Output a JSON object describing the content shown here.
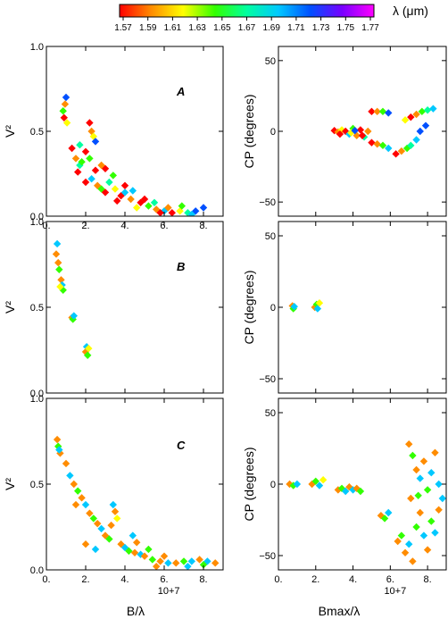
{
  "colorbar": {
    "label": "λ (μm)",
    "ticks": [
      "1.57",
      "1.59",
      "1.61",
      "1.63",
      "1.65",
      "1.67",
      "1.69",
      "1.71",
      "1.73",
      "1.75",
      "1.77"
    ],
    "stops": [
      "#ff0000",
      "#ff8c00",
      "#ffff00",
      "#32ff00",
      "#00ffa0",
      "#00c8ff",
      "#0050ff",
      "#7800ff",
      "#ff00ff"
    ]
  },
  "labels": {
    "left_x": "B/λ",
    "right_x": "Bmax/λ",
    "left_y": "V²",
    "right_y": "CP (degrees)",
    "exponent": "10+7"
  },
  "chart_data": [
    {
      "type": "scatter",
      "panel": "A",
      "quantity": "V2",
      "xlim": [
        0,
        9
      ],
      "ylim": [
        0,
        1
      ],
      "xticks": [
        "0.",
        "2.",
        "4.",
        "6.",
        "8."
      ],
      "xtick_values": [
        0,
        2,
        4,
        6,
        8
      ],
      "yticks": [
        "0.0",
        "0.5",
        "1.0"
      ],
      "ytick_values": [
        0,
        0.5,
        1
      ],
      "points": [
        [
          0.9,
          0.58,
          "#ff0000"
        ],
        [
          0.95,
          0.66,
          "#ff8c00"
        ],
        [
          1.0,
          0.7,
          "#0050ff"
        ],
        [
          0.85,
          0.62,
          "#32ff00"
        ],
        [
          1.05,
          0.55,
          "#ffff00"
        ],
        [
          1.3,
          0.4,
          "#ff0000"
        ],
        [
          1.5,
          0.34,
          "#ff8c00"
        ],
        [
          1.7,
          0.3,
          "#00ffa0"
        ],
        [
          1.6,
          0.26,
          "#ff0000"
        ],
        [
          1.8,
          0.32,
          "#32ff00"
        ],
        [
          2.2,
          0.55,
          "#ff0000"
        ],
        [
          2.3,
          0.5,
          "#ff8c00"
        ],
        [
          2.4,
          0.47,
          "#ffff00"
        ],
        [
          2.5,
          0.44,
          "#0050ff"
        ],
        [
          2.0,
          0.2,
          "#ff0000"
        ],
        [
          2.3,
          0.22,
          "#00c8ff"
        ],
        [
          2.6,
          0.18,
          "#ff8c00"
        ],
        [
          2.8,
          0.16,
          "#32ff00"
        ],
        [
          3.0,
          0.14,
          "#ff0000"
        ],
        [
          3.2,
          0.2,
          "#00ffa0"
        ],
        [
          3.5,
          0.16,
          "#ffff00"
        ],
        [
          3.8,
          0.12,
          "#ff0000"
        ],
        [
          4.0,
          0.14,
          "#00c8ff"
        ],
        [
          4.3,
          0.1,
          "#ff8c00"
        ],
        [
          3.0,
          0.28,
          "#ff0000"
        ],
        [
          3.4,
          0.24,
          "#32ff00"
        ],
        [
          4.0,
          0.18,
          "#ff0000"
        ],
        [
          4.4,
          0.15,
          "#00c8ff"
        ],
        [
          2.5,
          0.27,
          "#ff0000"
        ],
        [
          2.8,
          0.3,
          "#ff8c00"
        ],
        [
          2.2,
          0.34,
          "#32ff00"
        ],
        [
          2.0,
          0.38,
          "#ff0000"
        ],
        [
          1.7,
          0.42,
          "#00ffa0"
        ],
        [
          4.8,
          0.08,
          "#ff0000"
        ],
        [
          5.2,
          0.06,
          "#32ff00"
        ],
        [
          5.6,
          0.04,
          "#ff8c00"
        ],
        [
          6.0,
          0.03,
          "#00c8ff"
        ],
        [
          6.4,
          0.02,
          "#ff0000"
        ],
        [
          6.8,
          0.03,
          "#ffff00"
        ],
        [
          7.2,
          0.02,
          "#00ffa0"
        ],
        [
          7.6,
          0.03,
          "#0050ff"
        ],
        [
          8.0,
          0.05,
          "#0050ff"
        ],
        [
          5.0,
          0.1,
          "#ff0000"
        ],
        [
          5.5,
          0.08,
          "#00ffa0"
        ],
        [
          6.2,
          0.05,
          "#ff8c00"
        ],
        [
          6.9,
          0.06,
          "#32ff00"
        ],
        [
          3.6,
          0.09,
          "#ff0000"
        ],
        [
          4.6,
          0.05,
          "#ffff00"
        ],
        [
          5.8,
          0.02,
          "#ff0000"
        ],
        [
          7.4,
          0.01,
          "#00c8ff"
        ]
      ]
    },
    {
      "type": "scatter",
      "panel": "A",
      "quantity": "CP",
      "xlim": [
        0,
        9
      ],
      "ylim": [
        -60,
        60
      ],
      "xticks": [],
      "xtick_values": [
        0,
        2,
        4,
        6,
        8
      ],
      "yticks": [
        "−50",
        "0",
        "50"
      ],
      "ytick_values": [
        -50,
        0,
        50
      ],
      "points": [
        [
          3.0,
          0.5,
          "#ff0000"
        ],
        [
          3.2,
          -0.5,
          "#ff8c00"
        ],
        [
          3.4,
          1,
          "#ffff00"
        ],
        [
          3.6,
          0,
          "#ff0000"
        ],
        [
          3.8,
          -2,
          "#00c8ff"
        ],
        [
          4.0,
          2,
          "#32ff00"
        ],
        [
          4.2,
          -3,
          "#ff8c00"
        ],
        [
          4.4,
          1,
          "#ff0000"
        ],
        [
          4.6,
          -4,
          "#00ffa0"
        ],
        [
          4.8,
          0,
          "#ff8c00"
        ],
        [
          3.3,
          -2,
          "#ff0000"
        ],
        [
          3.9,
          -1,
          "#ffff00"
        ],
        [
          4.5,
          -3,
          "#ff0000"
        ],
        [
          4.1,
          0.5,
          "#0050ff"
        ],
        [
          5.0,
          14,
          "#ff0000"
        ],
        [
          5.3,
          14,
          "#ff8c00"
        ],
        [
          5.6,
          14,
          "#32ff00"
        ],
        [
          5.9,
          13,
          "#0050ff"
        ],
        [
          5.0,
          -8,
          "#ff0000"
        ],
        [
          5.3,
          -9,
          "#ff8c00"
        ],
        [
          5.6,
          -10,
          "#32ff00"
        ],
        [
          5.9,
          -12,
          "#00c8ff"
        ],
        [
          6.3,
          -16,
          "#ff0000"
        ],
        [
          6.6,
          -14,
          "#ff8c00"
        ],
        [
          6.9,
          -12,
          "#32ff00"
        ],
        [
          7.1,
          -10,
          "#00ffa0"
        ],
        [
          7.4,
          -6,
          "#00c8ff"
        ],
        [
          7.6,
          0,
          "#0050ff"
        ],
        [
          7.9,
          4,
          "#0050ff"
        ],
        [
          7.1,
          10,
          "#ff0000"
        ],
        [
          7.4,
          12,
          "#ff8c00"
        ],
        [
          7.7,
          14,
          "#32ff00"
        ],
        [
          8.0,
          15,
          "#00ffa0"
        ],
        [
          8.3,
          16,
          "#00c8ff"
        ],
        [
          6.8,
          8,
          "#ffff00"
        ]
      ]
    },
    {
      "type": "scatter",
      "panel": "B",
      "quantity": "V2",
      "xlim": [
        0,
        9
      ],
      "ylim": [
        0,
        1
      ],
      "xticks": [],
      "xtick_values": [
        0,
        2,
        4,
        6,
        8
      ],
      "yticks": [
        "0.0",
        "0.5",
        "1.0"
      ],
      "ytick_values": [
        0,
        0.5,
        1
      ],
      "points": [
        [
          0.55,
          0.87,
          "#00c8ff"
        ],
        [
          0.5,
          0.81,
          "#ff8c00"
        ],
        [
          0.6,
          0.76,
          "#ff8c00"
        ],
        [
          0.65,
          0.72,
          "#32ff00"
        ],
        [
          0.75,
          0.66,
          "#ff8c00"
        ],
        [
          0.8,
          0.63,
          "#00c8ff"
        ],
        [
          0.85,
          0.6,
          "#32ff00"
        ],
        [
          0.7,
          0.62,
          "#ffff00"
        ],
        [
          1.3,
          0.44,
          "#ff8c00"
        ],
        [
          1.35,
          0.43,
          "#32ff00"
        ],
        [
          1.4,
          0.45,
          "#00c8ff"
        ],
        [
          2.0,
          0.24,
          "#ff8c00"
        ],
        [
          2.05,
          0.27,
          "#00c8ff"
        ],
        [
          2.1,
          0.22,
          "#32ff00"
        ],
        [
          2.15,
          0.26,
          "#ffff00"
        ]
      ]
    },
    {
      "type": "scatter",
      "panel": "B",
      "quantity": "CP",
      "xlim": [
        0,
        9
      ],
      "ylim": [
        -60,
        60
      ],
      "xticks": [],
      "xtick_values": [
        0,
        2,
        4,
        6,
        8
      ],
      "yticks": [
        "−50",
        "0",
        "50"
      ],
      "ytick_values": [
        -50,
        0,
        50
      ],
      "points": [
        [
          0.75,
          1,
          "#ff8c00"
        ],
        [
          0.8,
          -1,
          "#32ff00"
        ],
        [
          0.85,
          0.5,
          "#00c8ff"
        ],
        [
          1.95,
          0,
          "#ff8c00"
        ],
        [
          2.05,
          2,
          "#32ff00"
        ],
        [
          2.1,
          -1,
          "#00c8ff"
        ],
        [
          2.2,
          3,
          "#ffff00"
        ]
      ]
    },
    {
      "type": "scatter",
      "panel": "C",
      "quantity": "V2",
      "xlim": [
        0,
        9
      ],
      "ylim": [
        0,
        1
      ],
      "xticks": [
        "0.",
        "2.",
        "4.",
        "6.",
        "8."
      ],
      "xtick_values": [
        0,
        2,
        4,
        6,
        8
      ],
      "yticks": [
        "0.0",
        "0.5",
        "1.0"
      ],
      "ytick_values": [
        0,
        0.5,
        1
      ],
      "points": [
        [
          0.55,
          0.76,
          "#ff8c00"
        ],
        [
          0.6,
          0.72,
          "#32ff00"
        ],
        [
          0.7,
          0.68,
          "#ff8c00"
        ],
        [
          0.65,
          0.7,
          "#00c8ff"
        ],
        [
          1.0,
          0.62,
          "#ff8c00"
        ],
        [
          1.2,
          0.55,
          "#00c8ff"
        ],
        [
          1.4,
          0.5,
          "#ff8c00"
        ],
        [
          1.6,
          0.46,
          "#32ff00"
        ],
        [
          1.8,
          0.42,
          "#ff8c00"
        ],
        [
          2.0,
          0.38,
          "#00c8ff"
        ],
        [
          2.2,
          0.33,
          "#ff8c00"
        ],
        [
          2.4,
          0.3,
          "#32ff00"
        ],
        [
          2.6,
          0.27,
          "#ff8c00"
        ],
        [
          2.8,
          0.24,
          "#00c8ff"
        ],
        [
          3.0,
          0.2,
          "#ff8c00"
        ],
        [
          3.2,
          0.18,
          "#32ff00"
        ],
        [
          3.4,
          0.38,
          "#00c8ff"
        ],
        [
          3.5,
          0.34,
          "#ff8c00"
        ],
        [
          3.6,
          0.3,
          "#ffff00"
        ],
        [
          3.3,
          0.26,
          "#ff8c00"
        ],
        [
          3.8,
          0.15,
          "#ff8c00"
        ],
        [
          4.0,
          0.13,
          "#00c8ff"
        ],
        [
          4.2,
          0.11,
          "#32ff00"
        ],
        [
          4.5,
          0.1,
          "#ff8c00"
        ],
        [
          4.8,
          0.09,
          "#00c8ff"
        ],
        [
          5.0,
          0.08,
          "#ff8c00"
        ],
        [
          5.4,
          0.06,
          "#32ff00"
        ],
        [
          5.8,
          0.05,
          "#ff8c00"
        ],
        [
          6.2,
          0.04,
          "#00c8ff"
        ],
        [
          6.6,
          0.04,
          "#ff8c00"
        ],
        [
          7.0,
          0.05,
          "#32ff00"
        ],
        [
          7.4,
          0.05,
          "#00c8ff"
        ],
        [
          7.8,
          0.06,
          "#ff8c00"
        ],
        [
          8.2,
          0.05,
          "#00c8ff"
        ],
        [
          8.6,
          0.04,
          "#ff8c00"
        ],
        [
          4.4,
          0.2,
          "#00c8ff"
        ],
        [
          4.6,
          0.16,
          "#ff8c00"
        ],
        [
          5.2,
          0.12,
          "#32ff00"
        ],
        [
          6.0,
          0.08,
          "#ff8c00"
        ],
        [
          7.2,
          0.02,
          "#00c8ff"
        ],
        [
          2.0,
          0.15,
          "#ff8c00"
        ],
        [
          2.5,
          0.12,
          "#00c8ff"
        ],
        [
          1.5,
          0.38,
          "#ff8c00"
        ],
        [
          5.6,
          0.02,
          "#ff8c00"
        ],
        [
          8.0,
          0.03,
          "#32ff00"
        ]
      ]
    },
    {
      "type": "scatter",
      "panel": "C",
      "quantity": "CP",
      "xlim": [
        0,
        9
      ],
      "ylim": [
        -60,
        60
      ],
      "xticks": [
        "0.",
        "2.",
        "4.",
        "6.",
        "8."
      ],
      "xtick_values": [
        0,
        2,
        4,
        6,
        8
      ],
      "yticks": [
        "−50",
        "0",
        "50"
      ],
      "ytick_values": [
        -50,
        0,
        50
      ],
      "points": [
        [
          0.6,
          0,
          "#ff8c00"
        ],
        [
          0.8,
          -1,
          "#32ff00"
        ],
        [
          1.0,
          0,
          "#00c8ff"
        ],
        [
          1.8,
          0,
          "#ff8c00"
        ],
        [
          2.0,
          2,
          "#32ff00"
        ],
        [
          2.2,
          -1,
          "#00c8ff"
        ],
        [
          2.4,
          3,
          "#ffff00"
        ],
        [
          3.2,
          -4,
          "#ff8c00"
        ],
        [
          3.4,
          -3,
          "#32ff00"
        ],
        [
          3.6,
          -5,
          "#00c8ff"
        ],
        [
          3.8,
          -2,
          "#ff8c00"
        ],
        [
          4.0,
          -4,
          "#00c8ff"
        ],
        [
          4.2,
          -3,
          "#ff8c00"
        ],
        [
          4.4,
          -5,
          "#32ff00"
        ],
        [
          5.5,
          -22,
          "#ff8c00"
        ],
        [
          5.7,
          -24,
          "#32ff00"
        ],
        [
          5.9,
          -20,
          "#00c8ff"
        ],
        [
          6.4,
          -40,
          "#ff8c00"
        ],
        [
          6.6,
          -36,
          "#32ff00"
        ],
        [
          6.8,
          -48,
          "#ff8c00"
        ],
        [
          7.0,
          -42,
          "#00c8ff"
        ],
        [
          7.2,
          -54,
          "#ff8c00"
        ],
        [
          7.4,
          -30,
          "#32ff00"
        ],
        [
          7.6,
          -20,
          "#ff8c00"
        ],
        [
          7.8,
          -36,
          "#00c8ff"
        ],
        [
          8.0,
          -46,
          "#ff8c00"
        ],
        [
          8.2,
          -26,
          "#32ff00"
        ],
        [
          8.4,
          -34,
          "#00c8ff"
        ],
        [
          8.6,
          -18,
          "#ff8c00"
        ],
        [
          7.0,
          28,
          "#ff8c00"
        ],
        [
          7.2,
          20,
          "#32ff00"
        ],
        [
          7.4,
          10,
          "#ff8c00"
        ],
        [
          7.6,
          4,
          "#00c8ff"
        ],
        [
          7.8,
          16,
          "#ff8c00"
        ],
        [
          8.0,
          -4,
          "#32ff00"
        ],
        [
          8.2,
          8,
          "#00c8ff"
        ],
        [
          8.4,
          22,
          "#ff8c00"
        ],
        [
          8.6,
          0,
          "#00c8ff"
        ],
        [
          7.1,
          -10,
          "#ff8c00"
        ],
        [
          7.5,
          -8,
          "#32ff00"
        ],
        [
          8.8,
          -10,
          "#00c8ff"
        ]
      ]
    }
  ]
}
